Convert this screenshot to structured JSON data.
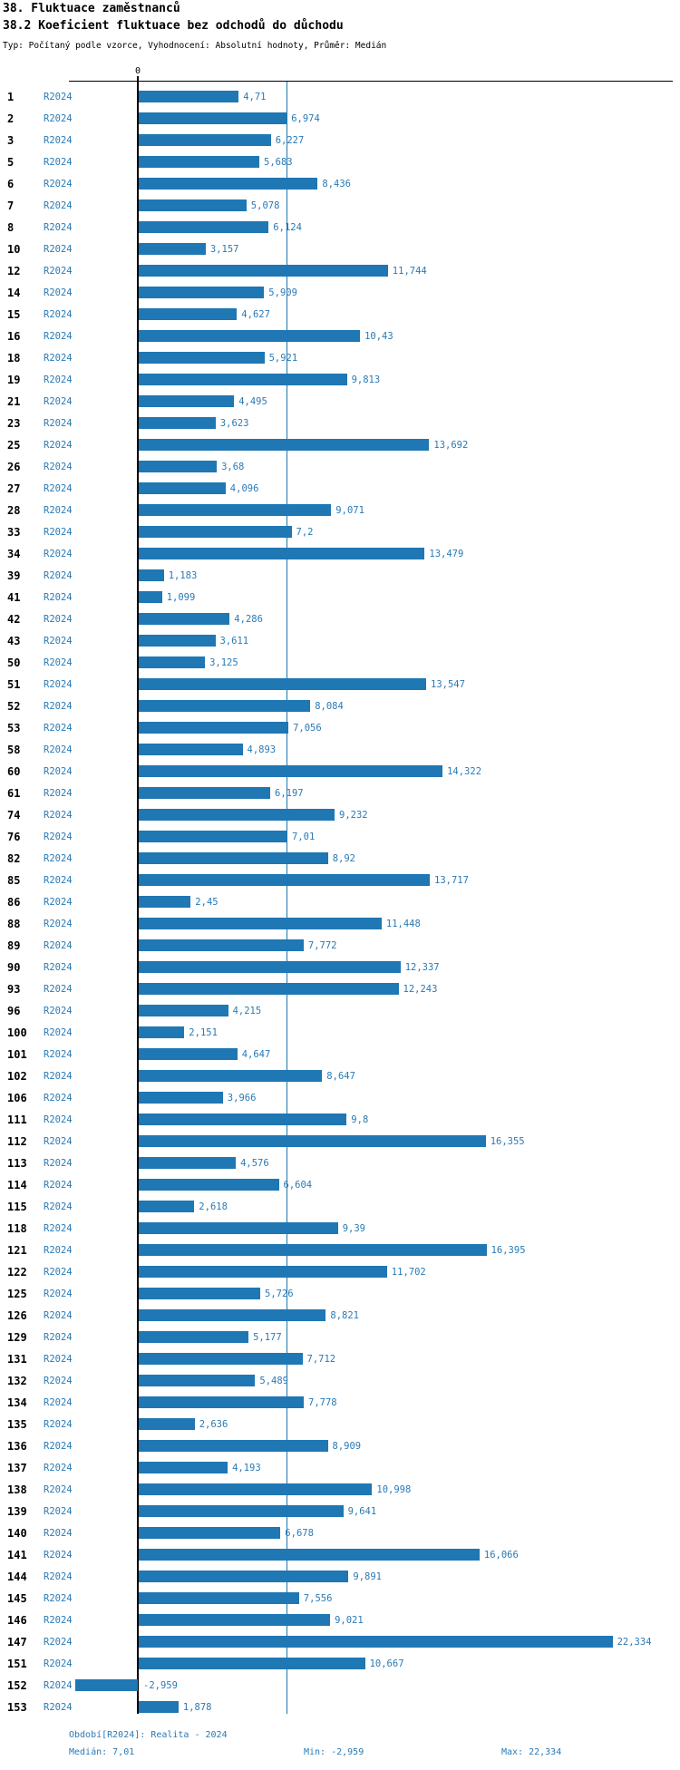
{
  "header": {
    "title": "38. Fluktuace zaměstnanců",
    "subtitle": "38.2 Koeficient fluktuace bez odchodů do důchodu",
    "meta": "Typ: Počítaný podle vzorce, Vyhodnocení: Absolutní hodnoty, Průměr: Medián"
  },
  "chart_data": {
    "type": "bar",
    "orientation": "horizontal",
    "axis_zero_label": "0",
    "series_label": "R2024",
    "categories": [
      "1",
      "2",
      "3",
      "5",
      "6",
      "7",
      "8",
      "10",
      "12",
      "14",
      "15",
      "16",
      "18",
      "19",
      "21",
      "23",
      "25",
      "26",
      "27",
      "28",
      "33",
      "34",
      "39",
      "41",
      "42",
      "43",
      "50",
      "51",
      "52",
      "53",
      "58",
      "60",
      "61",
      "74",
      "76",
      "82",
      "85",
      "86",
      "88",
      "89",
      "90",
      "93",
      "96",
      "100",
      "101",
      "102",
      "106",
      "111",
      "112",
      "113",
      "114",
      "115",
      "118",
      "121",
      "122",
      "125",
      "126",
      "129",
      "131",
      "132",
      "134",
      "135",
      "136",
      "137",
      "138",
      "139",
      "140",
      "141",
      "144",
      "145",
      "146",
      "147",
      "151",
      "152",
      "153"
    ],
    "values": [
      4.71,
      6.974,
      6.227,
      5.683,
      8.436,
      5.078,
      6.124,
      3.157,
      11.744,
      5.909,
      4.627,
      10.43,
      5.921,
      9.813,
      4.495,
      3.623,
      13.692,
      3.68,
      4.096,
      9.071,
      7.2,
      13.479,
      1.183,
      1.099,
      4.286,
      3.611,
      3.125,
      13.547,
      8.084,
      7.056,
      4.893,
      14.322,
      6.197,
      9.232,
      7.01,
      8.92,
      13.717,
      2.45,
      11.448,
      7.772,
      12.337,
      12.243,
      4.215,
      2.151,
      4.647,
      8.647,
      3.966,
      9.8,
      16.355,
      4.576,
      6.604,
      2.618,
      9.39,
      16.395,
      11.702,
      5.726,
      8.821,
      5.177,
      7.712,
      5.489,
      7.778,
      2.636,
      8.909,
      4.193,
      10.998,
      9.641,
      6.678,
      16.066,
      9.891,
      7.556,
      9.021,
      22.334,
      10.667,
      -2.959,
      1.878
    ],
    "value_labels": [
      "4,71",
      "6,974",
      "6,227",
      "5,683",
      "8,436",
      "5,078",
      "6,124",
      "3,157",
      "11,744",
      "5,909",
      "4,627",
      "10,43",
      "5,921",
      "9,813",
      "4,495",
      "3,623",
      "13,692",
      "3,68",
      "4,096",
      "9,071",
      "7,2",
      "13,479",
      "1,183",
      "1,099",
      "4,286",
      "3,611",
      "3,125",
      "13,547",
      "8,084",
      "7,056",
      "4,893",
      "14,322",
      "6,197",
      "9,232",
      "7,01",
      "8,92",
      "13,717",
      "2,45",
      "11,448",
      "7,772",
      "12,337",
      "12,243",
      "4,215",
      "2,151",
      "4,647",
      "8,647",
      "3,966",
      "9,8",
      "16,355",
      "4,576",
      "6,604",
      "2,618",
      "9,39",
      "16,395",
      "11,702",
      "5,726",
      "8,821",
      "5,177",
      "7,712",
      "5,489",
      "7,778",
      "2,636",
      "8,909",
      "4,193",
      "10,998",
      "9,641",
      "6,678",
      "16,066",
      "9,891",
      "7,556",
      "9,021",
      "22,334",
      "10,667",
      "-2,959",
      "1,878"
    ],
    "median": 7.01,
    "min": -2.959,
    "max": 22.334,
    "xlim": [
      -3.5,
      24
    ],
    "grid": false,
    "legend_position": "none",
    "bar_color": "#1f77b4",
    "median_line_color": "#1f77b4",
    "label_color": "#2a7ab5"
  },
  "footer": {
    "period": "Období[R2024]: Realita - 2024",
    "median_label": "Medián: 7,01",
    "min_label": "Min: -2,959",
    "max_label": "Max: 22,334"
  }
}
